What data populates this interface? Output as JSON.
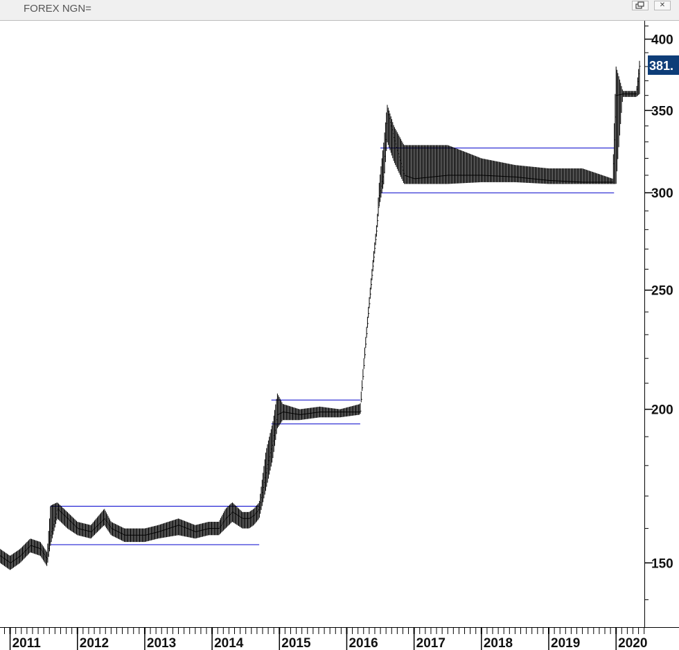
{
  "window": {
    "title": "FOREX NGN=",
    "restore_icon": "restore-window-icon",
    "close_icon": "close-icon",
    "close_glyph": "✕"
  },
  "chart_data": {
    "type": "bar",
    "title": "",
    "xlabel": "",
    "ylabel": "",
    "scale": "log",
    "ylim": [
      133,
      414
    ],
    "xlim": [
      2010.85,
      2020.42
    ],
    "y_ticks": [
      150,
      200,
      250,
      300,
      350,
      400
    ],
    "x_ticks": [
      "2011",
      "2012",
      "2013",
      "2014",
      "2015",
      "2016",
      "2017",
      "2018",
      "2019",
      "2020"
    ],
    "last_value_label": "381.",
    "colors": {
      "price": "#000000",
      "channel": "#0000cc",
      "last_label_bg": "#0e3d78"
    },
    "grid": false,
    "series": [
      {
        "x": [
          2010.85,
          2011.0,
          2011.15,
          2011.3,
          2011.45,
          2011.55,
          2011.6,
          2011.7,
          2011.85,
          2012.0,
          2012.2,
          2012.4,
          2012.5,
          2012.7,
          2013.0,
          2013.2,
          2013.5,
          2013.75,
          2013.95,
          2014.1,
          2014.2,
          2014.3,
          2014.45,
          2014.55,
          2014.62,
          2014.7,
          2014.8,
          2014.9,
          2014.97,
          2015.05,
          2015.3,
          2015.6,
          2015.9,
          2016.2,
          2016.45,
          2016.48,
          2016.55,
          2016.6,
          2016.7,
          2016.85,
          2017.0,
          2017.5,
          2018.0,
          2018.5,
          2019.0,
          2019.5,
          2019.95,
          2020.0,
          2020.1,
          2020.2,
          2020.3,
          2020.35
        ],
        "close": [
          152,
          150,
          152,
          155,
          154,
          151,
          158,
          166,
          163,
          160,
          159,
          163,
          160,
          158,
          158,
          159,
          161,
          159,
          160,
          160,
          163,
          165,
          163,
          163,
          164,
          166,
          178,
          188,
          198,
          199,
          198,
          199,
          199,
          199,
          282,
          298,
          312,
          350,
          332,
          310,
          308,
          310,
          310,
          309,
          307,
          306,
          306,
          360,
          361,
          361,
          361,
          381
        ],
        "high": [
          154,
          152,
          154,
          157,
          156,
          153,
          167,
          168,
          165,
          162,
          161,
          166,
          162,
          160,
          160,
          161,
          163,
          161,
          162,
          162,
          166,
          168,
          165,
          165,
          166,
          168,
          185,
          195,
          206,
          202,
          200,
          201,
          200,
          202,
          285,
          305,
          330,
          354,
          340,
          328,
          328,
          328,
          320,
          316,
          314,
          314,
          308,
          380,
          363,
          363,
          363,
          385
        ],
        "low": [
          150,
          148,
          150,
          153,
          152,
          149,
          155,
          163,
          160,
          158,
          157,
          161,
          158,
          156,
          156,
          157,
          158,
          157,
          158,
          158,
          160,
          162,
          160,
          160,
          161,
          163,
          172,
          182,
          193,
          196,
          196,
          197,
          197,
          198,
          279,
          292,
          305,
          330,
          318,
          305,
          305,
          305,
          306,
          306,
          305,
          305,
          305,
          305,
          359,
          359,
          359,
          361
        ]
      }
    ],
    "channels": [
      {
        "x": [
          2011.6,
          2014.7
        ],
        "upper": 166.8,
        "lower": 155.2
      },
      {
        "x": [
          2014.88,
          2016.2
        ],
        "upper": 203.5,
        "lower": 194.6
      },
      {
        "x": [
          2016.5,
          2019.97
        ],
        "upper": 326.2,
        "lower": 300.0
      }
    ]
  }
}
